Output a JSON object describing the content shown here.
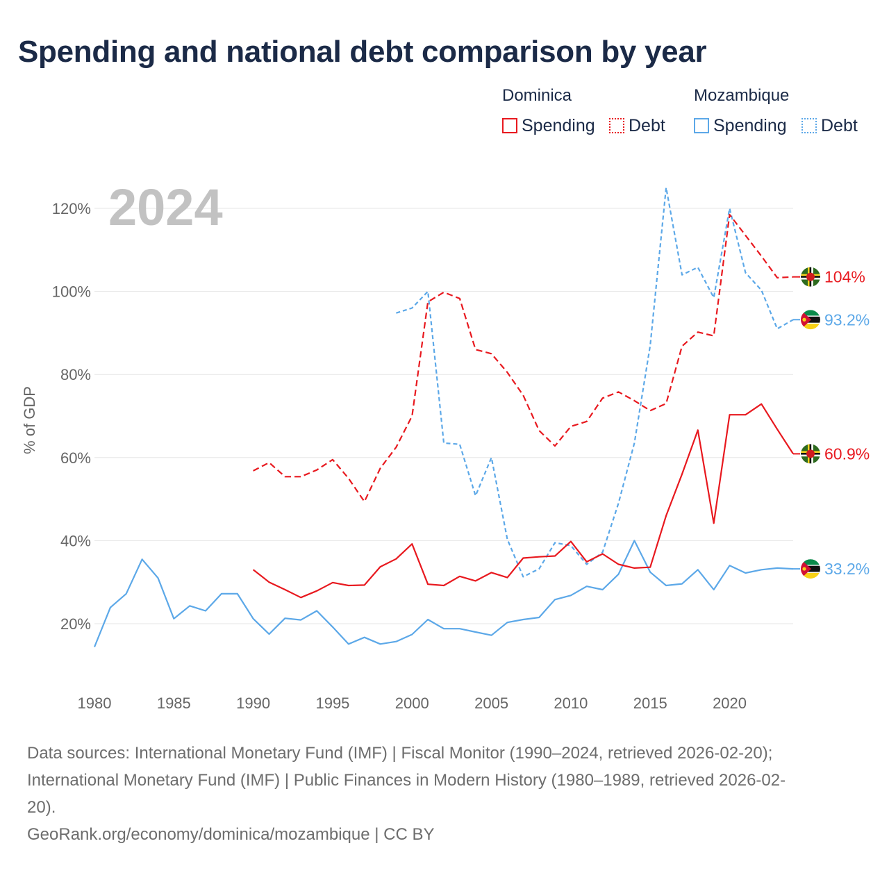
{
  "title": "Spending and national debt comparison by year",
  "legend": {
    "dominica": {
      "name": "Dominica",
      "spending": "Spending",
      "debt": "Debt"
    },
    "mozambique": {
      "name": "Mozambique",
      "spending": "Spending",
      "debt": "Debt"
    }
  },
  "colors": {
    "dominica": "#e8191f",
    "mozambique": "#5ca8e8"
  },
  "chart_data": {
    "type": "line",
    "year_label": "2024",
    "ylabel": "% of GDP",
    "xlim": [
      1980,
      2024
    ],
    "ylim": [
      9,
      130
    ],
    "x_ticks": [
      "1980",
      "1985",
      "1990",
      "1995",
      "2000",
      "2005",
      "2010",
      "2015",
      "2020"
    ],
    "y_ticks": [
      "20%",
      "40%",
      "60%",
      "80%",
      "100%",
      "120%"
    ],
    "series": [
      {
        "name": "Dominica Spending",
        "country": "dominica",
        "style": "solid",
        "end_label": "60.9%",
        "end_value": 60.9,
        "x": [
          1990,
          1991,
          1992,
          1993,
          1994,
          1995,
          1996,
          1997,
          1998,
          1999,
          2000,
          2001,
          2002,
          2003,
          2004,
          2005,
          2006,
          2007,
          2008,
          2009,
          2010,
          2011,
          2012,
          2013,
          2014,
          2015,
          2016,
          2017,
          2018,
          2019,
          2020,
          2021,
          2022,
          2023,
          2024
        ],
        "values": [
          33,
          30,
          28.2,
          26.3,
          27.9,
          29.9,
          29.2,
          29.3,
          33.7,
          35.6,
          39.2,
          29.5,
          29.2,
          31.4,
          30.3,
          32.3,
          31.1,
          35.8,
          36.1,
          36.3,
          39.8,
          34.9,
          36.8,
          34.3,
          33.4,
          33.6,
          46,
          56,
          66.6,
          44.2,
          70.3,
          70.3,
          72.9,
          66.8,
          60.9
        ]
      },
      {
        "name": "Dominica Debt",
        "country": "dominica",
        "style": "dashed",
        "end_label": "104%",
        "end_value": 103.5,
        "x": [
          1990,
          1991,
          1992,
          1993,
          1994,
          1995,
          1996,
          1997,
          1998,
          1999,
          2000,
          2001,
          2002,
          2003,
          2004,
          2005,
          2006,
          2007,
          2008,
          2009,
          2010,
          2011,
          2012,
          2013,
          2014,
          2015,
          2016,
          2017,
          2018,
          2019,
          2020,
          2021,
          2022,
          2023,
          2024
        ],
        "values": [
          56.8,
          58.8,
          55.4,
          55.4,
          57,
          59.5,
          55,
          49.4,
          57.4,
          62.5,
          70,
          97.5,
          99.8,
          98.3,
          86,
          85,
          80.5,
          75,
          66.5,
          62.8,
          67.5,
          68.7,
          74.3,
          75.8,
          73.7,
          71.3,
          73,
          86.8,
          90.2,
          89.3,
          118.5,
          113.5,
          108.5,
          103.3,
          103.5
        ]
      },
      {
        "name": "Mozambique Spending",
        "country": "mozambique",
        "style": "solid",
        "end_label": "33.2%",
        "end_value": 33.2,
        "x": [
          1980,
          1981,
          1982,
          1983,
          1984,
          1985,
          1986,
          1987,
          1988,
          1989,
          1990,
          1991,
          1992,
          1993,
          1994,
          1995,
          1996,
          1997,
          1998,
          1999,
          2000,
          2001,
          2002,
          2003,
          2004,
          2005,
          2006,
          2007,
          2008,
          2009,
          2010,
          2011,
          2012,
          2013,
          2014,
          2015,
          2016,
          2017,
          2018,
          2019,
          2020,
          2021,
          2022,
          2023,
          2024
        ],
        "values": [
          14.4,
          23.9,
          27.2,
          35.5,
          31,
          21.2,
          24.3,
          23.1,
          27.2,
          27.2,
          21.2,
          17.5,
          21.3,
          20.9,
          23.1,
          19.2,
          15.1,
          16.7,
          15.1,
          15.7,
          17.4,
          21,
          18.8,
          18.8,
          18,
          17.2,
          20.3,
          21,
          21.5,
          25.8,
          26.8,
          29,
          28.2,
          31.9,
          40,
          32.4,
          29.2,
          29.6,
          33,
          28.2,
          34,
          32.2,
          33,
          33.4,
          33.2
        ]
      },
      {
        "name": "Mozambique Debt",
        "country": "mozambique",
        "style": "dotted",
        "end_label": "93.2%",
        "end_value": 93.2,
        "x": [
          1999,
          2000,
          2001,
          2002,
          2003,
          2004,
          2005,
          2006,
          2007,
          2008,
          2009,
          2010,
          2011,
          2012,
          2013,
          2014,
          2015,
          2016,
          2017,
          2018,
          2019,
          2020,
          2021,
          2022,
          2023,
          2024
        ],
        "values": [
          94.8,
          96,
          100,
          63.5,
          63.2,
          50.8,
          60,
          40.3,
          31.3,
          33.2,
          39.5,
          38.8,
          34.3,
          37.2,
          49,
          63.5,
          87,
          125,
          104,
          105.8,
          98.5,
          120,
          104.5,
          100.3,
          91,
          93.2
        ]
      }
    ]
  },
  "footer": {
    "line1": "Data sources: International Monetary Fund (IMF) | Fiscal Monitor (1990–2024, retrieved 2026-02-20);",
    "line2": "International Monetary Fund (IMF) | Public Finances in Modern History (1980–1989, retrieved 2026-02-",
    "line3": "20).",
    "line4": "GeoRank.org/economy/dominica/mozambique | CC BY"
  }
}
